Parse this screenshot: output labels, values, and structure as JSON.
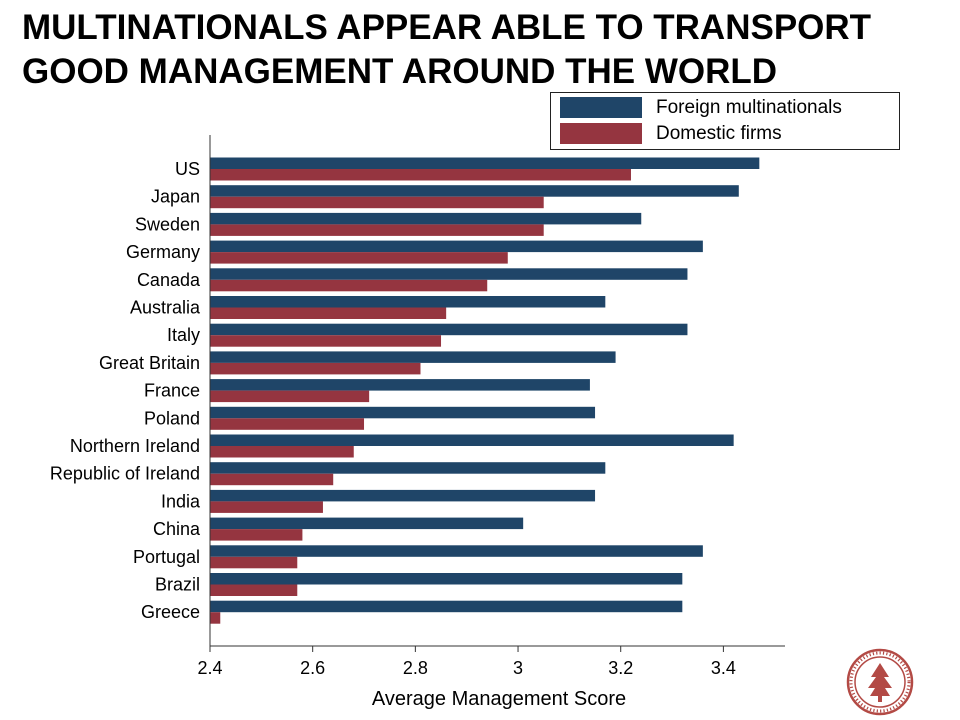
{
  "title": "MULTINATIONALS APPEAR ABLE TO TRANSPORT GOOD MANAGEMENT AROUND THE WORLD",
  "colors": {
    "foreign": "#1f4568",
    "domestic": "#953540",
    "axis": "#333333",
    "seal": "#b34a45"
  },
  "legend": {
    "items": [
      {
        "label": "Foreign multinationals",
        "color": "#1f4568"
      },
      {
        "label": "Domestic firms",
        "color": "#953540"
      }
    ]
  },
  "chart_data": {
    "type": "bar",
    "orientation": "horizontal",
    "xlabel": "Average Management Score",
    "ylabel": "",
    "xlim": [
      2.4,
      3.52
    ],
    "xticks": [
      2.4,
      2.6,
      2.8,
      3,
      3.2,
      3.4
    ],
    "xtick_labels": [
      "2.4",
      "2.6",
      "2.8",
      "3",
      "3.2",
      "3.4"
    ],
    "grid": false,
    "legend_position": "top-right",
    "categories": [
      "US",
      "Japan",
      "Sweden",
      "Germany",
      "Canada",
      "Australia",
      "Italy",
      "Great Britain",
      "France",
      "Poland",
      "Northern Ireland",
      "Republic of Ireland",
      "India",
      "China",
      "Portugal",
      "Brazil",
      "Greece"
    ],
    "series": [
      {
        "name": "Foreign multinationals",
        "values": [
          3.47,
          3.43,
          3.24,
          3.36,
          3.33,
          3.17,
          3.33,
          3.19,
          3.14,
          3.15,
          3.42,
          3.17,
          3.15,
          3.01,
          3.36,
          3.32,
          3.32
        ]
      },
      {
        "name": "Domestic firms",
        "values": [
          3.22,
          3.05,
          3.05,
          2.98,
          2.94,
          2.86,
          2.85,
          2.81,
          2.71,
          2.7,
          2.68,
          2.64,
          2.62,
          2.58,
          2.57,
          2.57,
          2.42
        ]
      }
    ]
  }
}
